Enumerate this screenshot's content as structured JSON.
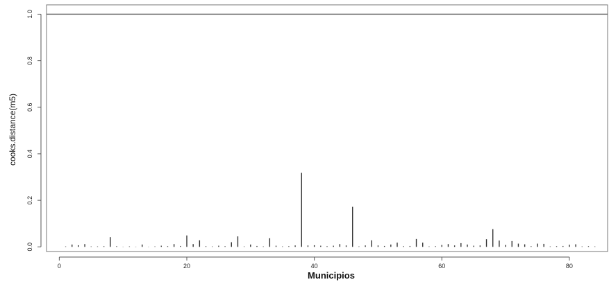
{
  "chart_data": {
    "type": "bar",
    "xlabel": "Municipios",
    "ylabel": "cooks.distance(m5)",
    "xlim": [
      -2,
      86
    ],
    "ylim": [
      -0.02,
      1.04
    ],
    "x_ticks": [
      0,
      20,
      40,
      60,
      80
    ],
    "x_tick_labels": [
      "0",
      "20",
      "40",
      "60",
      "80"
    ],
    "y_ticks": [
      0.0,
      0.2,
      0.4,
      0.6,
      0.8,
      1.0
    ],
    "y_tick_labels": [
      "0.0",
      "0.2",
      "0.4",
      "0.6",
      "0.8",
      "1.0"
    ],
    "reference_line": 1.0,
    "grid": false,
    "spike_color": "#333333",
    "reference_line_color": "#555555",
    "series": [
      {
        "x": [
          1,
          2,
          3,
          4,
          5,
          6,
          7,
          8,
          9,
          10,
          11,
          12,
          13,
          14,
          15,
          16,
          17,
          18,
          19,
          20,
          21,
          22,
          23,
          24,
          25,
          26,
          27,
          28,
          29,
          30,
          31,
          32,
          33,
          34,
          35,
          36,
          37,
          38,
          39,
          40,
          41,
          42,
          43,
          44,
          45,
          46,
          47,
          48,
          49,
          50,
          51,
          52,
          53,
          54,
          55,
          56,
          57,
          58,
          59,
          60,
          61,
          62,
          63,
          64,
          65,
          66,
          67,
          68,
          69,
          70,
          71,
          72,
          73,
          74,
          75,
          76,
          77,
          78,
          79,
          80,
          81,
          82,
          83,
          84
        ],
        "values": [
          0.002,
          0.01,
          0.007,
          0.012,
          0.002,
          0.002,
          0.003,
          0.042,
          0.003,
          0.001,
          0.002,
          0.001,
          0.01,
          0.001,
          0.002,
          0.005,
          0.003,
          0.012,
          0.004,
          0.049,
          0.012,
          0.028,
          0.003,
          0.002,
          0.005,
          0.003,
          0.02,
          0.045,
          0.002,
          0.01,
          0.004,
          0.002,
          0.037,
          0.005,
          0.002,
          0.003,
          0.006,
          0.318,
          0.006,
          0.007,
          0.005,
          0.003,
          0.005,
          0.012,
          0.006,
          0.172,
          0.002,
          0.006,
          0.028,
          0.006,
          0.004,
          0.01,
          0.018,
          0.003,
          0.004,
          0.034,
          0.018,
          0.002,
          0.003,
          0.008,
          0.012,
          0.006,
          0.016,
          0.01,
          0.005,
          0.006,
          0.033,
          0.076,
          0.027,
          0.008,
          0.025,
          0.014,
          0.011,
          0.003,
          0.014,
          0.013,
          0.002,
          0.003,
          0.004,
          0.009,
          0.011,
          0.002,
          0.003,
          0.002
        ]
      }
    ]
  }
}
